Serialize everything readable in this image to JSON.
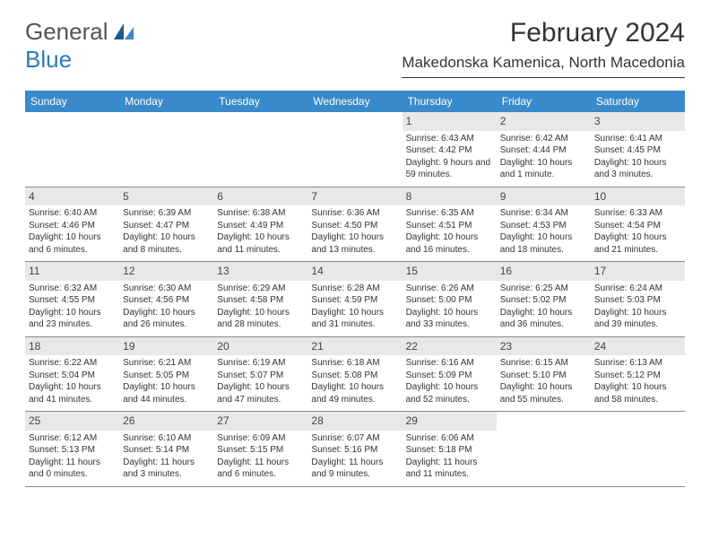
{
  "logo": {
    "text1": "General",
    "text2": "Blue"
  },
  "title": "February 2024",
  "location": "Makedonska Kamenica, North Macedonia",
  "colors": {
    "header_bg": "#3a8ac9",
    "header_text": "#ffffff",
    "daynum_bg": "#e8e8e8",
    "text": "#333333",
    "logo_gray": "#555555",
    "logo_blue": "#2a7cc2",
    "border": "#888888"
  },
  "dayHeaders": [
    "Sunday",
    "Monday",
    "Tuesday",
    "Wednesday",
    "Thursday",
    "Friday",
    "Saturday"
  ],
  "weeks": [
    [
      {
        "n": "",
        "sr": "",
        "ss": "",
        "dl": ""
      },
      {
        "n": "",
        "sr": "",
        "ss": "",
        "dl": ""
      },
      {
        "n": "",
        "sr": "",
        "ss": "",
        "dl": ""
      },
      {
        "n": "",
        "sr": "",
        "ss": "",
        "dl": ""
      },
      {
        "n": "1",
        "sr": "Sunrise: 6:43 AM",
        "ss": "Sunset: 4:42 PM",
        "dl": "Daylight: 9 hours and 59 minutes."
      },
      {
        "n": "2",
        "sr": "Sunrise: 6:42 AM",
        "ss": "Sunset: 4:44 PM",
        "dl": "Daylight: 10 hours and 1 minute."
      },
      {
        "n": "3",
        "sr": "Sunrise: 6:41 AM",
        "ss": "Sunset: 4:45 PM",
        "dl": "Daylight: 10 hours and 3 minutes."
      }
    ],
    [
      {
        "n": "4",
        "sr": "Sunrise: 6:40 AM",
        "ss": "Sunset: 4:46 PM",
        "dl": "Daylight: 10 hours and 6 minutes."
      },
      {
        "n": "5",
        "sr": "Sunrise: 6:39 AM",
        "ss": "Sunset: 4:47 PM",
        "dl": "Daylight: 10 hours and 8 minutes."
      },
      {
        "n": "6",
        "sr": "Sunrise: 6:38 AM",
        "ss": "Sunset: 4:49 PM",
        "dl": "Daylight: 10 hours and 11 minutes."
      },
      {
        "n": "7",
        "sr": "Sunrise: 6:36 AM",
        "ss": "Sunset: 4:50 PM",
        "dl": "Daylight: 10 hours and 13 minutes."
      },
      {
        "n": "8",
        "sr": "Sunrise: 6:35 AM",
        "ss": "Sunset: 4:51 PM",
        "dl": "Daylight: 10 hours and 16 minutes."
      },
      {
        "n": "9",
        "sr": "Sunrise: 6:34 AM",
        "ss": "Sunset: 4:53 PM",
        "dl": "Daylight: 10 hours and 18 minutes."
      },
      {
        "n": "10",
        "sr": "Sunrise: 6:33 AM",
        "ss": "Sunset: 4:54 PM",
        "dl": "Daylight: 10 hours and 21 minutes."
      }
    ],
    [
      {
        "n": "11",
        "sr": "Sunrise: 6:32 AM",
        "ss": "Sunset: 4:55 PM",
        "dl": "Daylight: 10 hours and 23 minutes."
      },
      {
        "n": "12",
        "sr": "Sunrise: 6:30 AM",
        "ss": "Sunset: 4:56 PM",
        "dl": "Daylight: 10 hours and 26 minutes."
      },
      {
        "n": "13",
        "sr": "Sunrise: 6:29 AM",
        "ss": "Sunset: 4:58 PM",
        "dl": "Daylight: 10 hours and 28 minutes."
      },
      {
        "n": "14",
        "sr": "Sunrise: 6:28 AM",
        "ss": "Sunset: 4:59 PM",
        "dl": "Daylight: 10 hours and 31 minutes."
      },
      {
        "n": "15",
        "sr": "Sunrise: 6:26 AM",
        "ss": "Sunset: 5:00 PM",
        "dl": "Daylight: 10 hours and 33 minutes."
      },
      {
        "n": "16",
        "sr": "Sunrise: 6:25 AM",
        "ss": "Sunset: 5:02 PM",
        "dl": "Daylight: 10 hours and 36 minutes."
      },
      {
        "n": "17",
        "sr": "Sunrise: 6:24 AM",
        "ss": "Sunset: 5:03 PM",
        "dl": "Daylight: 10 hours and 39 minutes."
      }
    ],
    [
      {
        "n": "18",
        "sr": "Sunrise: 6:22 AM",
        "ss": "Sunset: 5:04 PM",
        "dl": "Daylight: 10 hours and 41 minutes."
      },
      {
        "n": "19",
        "sr": "Sunrise: 6:21 AM",
        "ss": "Sunset: 5:05 PM",
        "dl": "Daylight: 10 hours and 44 minutes."
      },
      {
        "n": "20",
        "sr": "Sunrise: 6:19 AM",
        "ss": "Sunset: 5:07 PM",
        "dl": "Daylight: 10 hours and 47 minutes."
      },
      {
        "n": "21",
        "sr": "Sunrise: 6:18 AM",
        "ss": "Sunset: 5:08 PM",
        "dl": "Daylight: 10 hours and 49 minutes."
      },
      {
        "n": "22",
        "sr": "Sunrise: 6:16 AM",
        "ss": "Sunset: 5:09 PM",
        "dl": "Daylight: 10 hours and 52 minutes."
      },
      {
        "n": "23",
        "sr": "Sunrise: 6:15 AM",
        "ss": "Sunset: 5:10 PM",
        "dl": "Daylight: 10 hours and 55 minutes."
      },
      {
        "n": "24",
        "sr": "Sunrise: 6:13 AM",
        "ss": "Sunset: 5:12 PM",
        "dl": "Daylight: 10 hours and 58 minutes."
      }
    ],
    [
      {
        "n": "25",
        "sr": "Sunrise: 6:12 AM",
        "ss": "Sunset: 5:13 PM",
        "dl": "Daylight: 11 hours and 0 minutes."
      },
      {
        "n": "26",
        "sr": "Sunrise: 6:10 AM",
        "ss": "Sunset: 5:14 PM",
        "dl": "Daylight: 11 hours and 3 minutes."
      },
      {
        "n": "27",
        "sr": "Sunrise: 6:09 AM",
        "ss": "Sunset: 5:15 PM",
        "dl": "Daylight: 11 hours and 6 minutes."
      },
      {
        "n": "28",
        "sr": "Sunrise: 6:07 AM",
        "ss": "Sunset: 5:16 PM",
        "dl": "Daylight: 11 hours and 9 minutes."
      },
      {
        "n": "29",
        "sr": "Sunrise: 6:06 AM",
        "ss": "Sunset: 5:18 PM",
        "dl": "Daylight: 11 hours and 11 minutes."
      },
      {
        "n": "",
        "sr": "",
        "ss": "",
        "dl": ""
      },
      {
        "n": "",
        "sr": "",
        "ss": "",
        "dl": ""
      }
    ]
  ]
}
